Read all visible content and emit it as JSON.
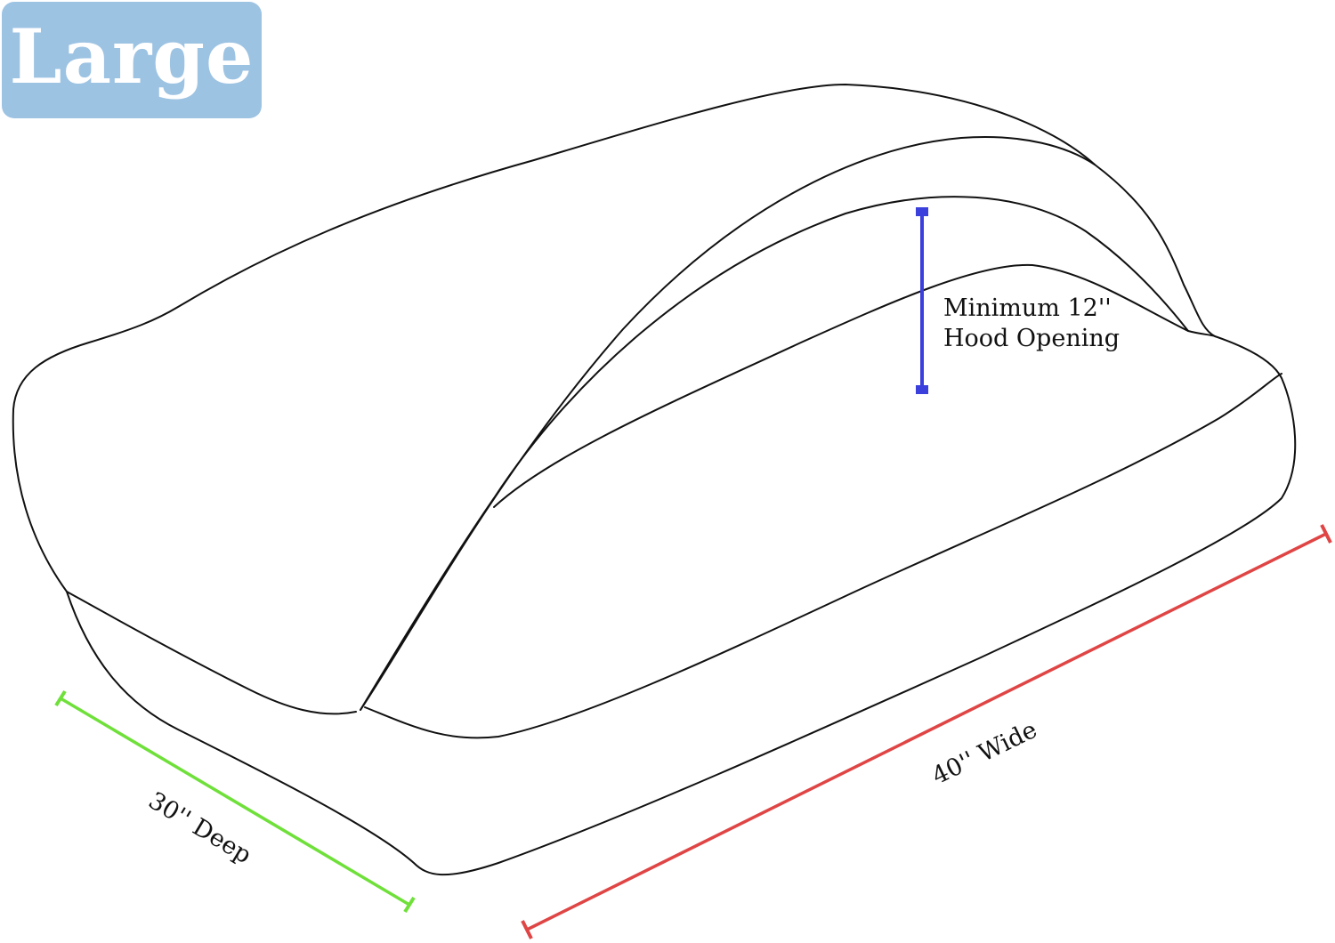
{
  "size_badge": {
    "label": "Large",
    "color": "#9dc3e3"
  },
  "dimensions": {
    "hood": {
      "line1": "Minimum 12''",
      "line2": "Hood Opening",
      "color": "#3b3fdc"
    },
    "depth": {
      "label": "30'' Deep",
      "color": "#6fe03a"
    },
    "width": {
      "label": "40'' Wide",
      "color": "#e04545"
    }
  }
}
